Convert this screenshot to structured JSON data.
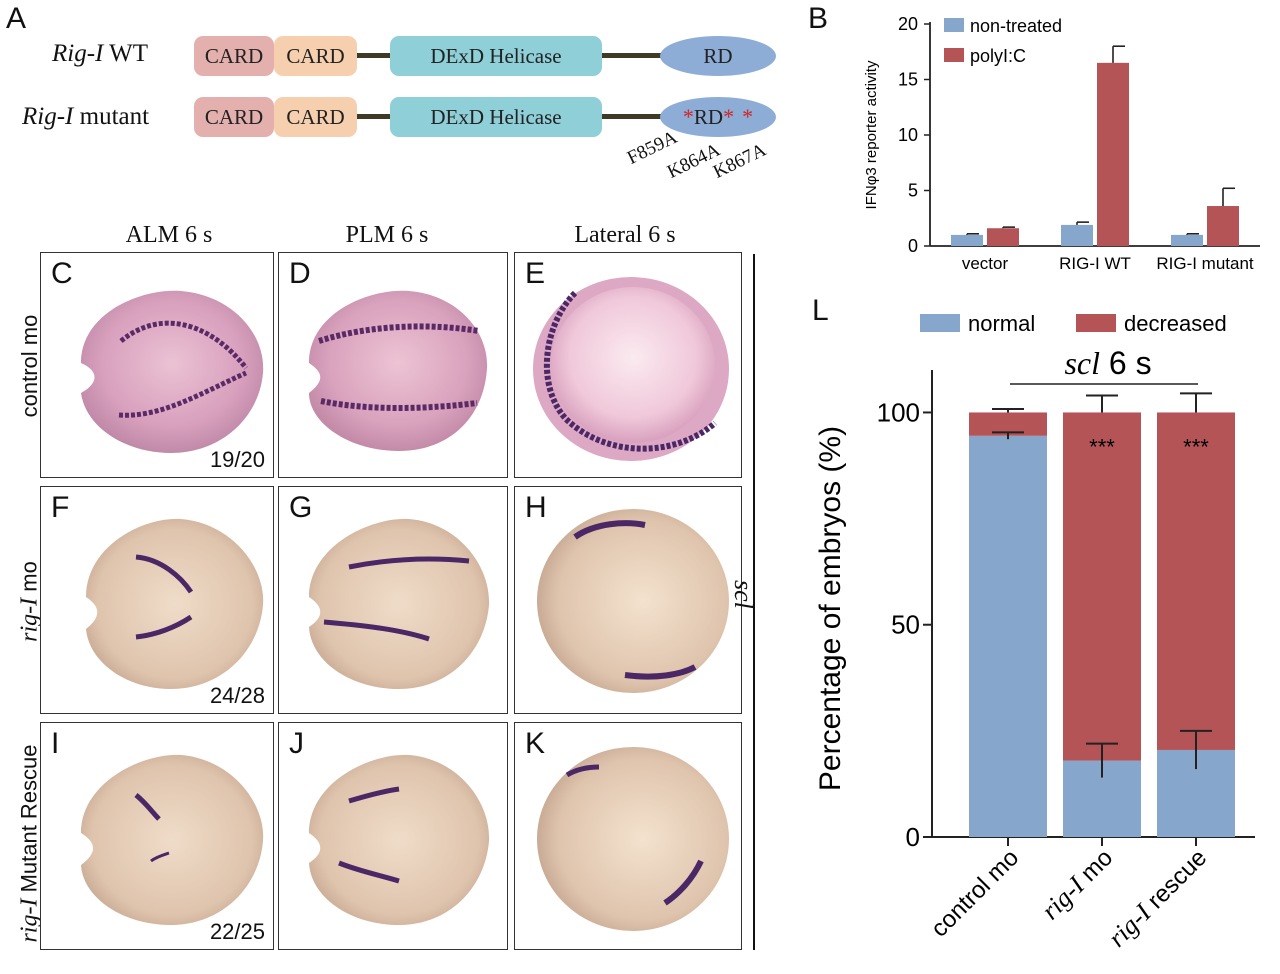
{
  "panelA": {
    "letter": "A",
    "rows": [
      {
        "name_italic": "Rig-I",
        "name_rest": " WT",
        "card1": "CARD",
        "card2": "CARD",
        "helicase": "DExD Helicase",
        "rd": "RD"
      },
      {
        "name_italic": "Rig-I",
        "name_rest": " mutant",
        "card1": "CARD",
        "card2": "CARD",
        "helicase": "DExD Helicase",
        "rd": "RD"
      }
    ],
    "mutations": [
      "F859A",
      "K864A",
      "K867A"
    ],
    "star": "*"
  },
  "panelB": {
    "letter": "B",
    "chart_data": {
      "type": "bar",
      "categories": [
        "vector",
        "RIG-I WT",
        "RIG-I mutant"
      ],
      "series": [
        {
          "name": "non-treated",
          "values": [
            1.0,
            1.9,
            1.0
          ],
          "errors": [
            0.1,
            0.25,
            0.1
          ],
          "color": "#86a6cc"
        },
        {
          "name": "polyI:C",
          "values": [
            1.6,
            16.5,
            3.6
          ],
          "errors": [
            0.1,
            1.5,
            1.6
          ],
          "color": "#b55456"
        }
      ],
      "ylabel": "IFNφ3 reporter activity",
      "ylim": [
        0,
        20
      ],
      "yticks": [
        0,
        5,
        10,
        15,
        20
      ],
      "legend": "top-left"
    }
  },
  "columns": [
    "ALM 6 s",
    "PLM 6 s",
    "Lateral 6 s"
  ],
  "rows": [
    {
      "label_italic": "",
      "label_rest": "control mo",
      "count": "19/20",
      "letters": [
        "C",
        "D",
        "E"
      ]
    },
    {
      "label_italic": "rig-I",
      "label_rest": " mo",
      "count": "24/28",
      "letters": [
        "F",
        "G",
        "H"
      ]
    },
    {
      "label_italic": "rig-I",
      "label_rest": " Mutant Rescue",
      "count": "22/25",
      "letters": [
        "I",
        "J",
        "K"
      ]
    }
  ],
  "gene_label": "scl",
  "panelL": {
    "letter": "L",
    "chart_data": {
      "type": "bar",
      "stacked": true,
      "categories": [
        "control mo",
        "rig-I mo",
        "rig-I rescue"
      ],
      "category_italic": [
        "",
        "rig-I",
        "rig-I"
      ],
      "category_rest": [
        "control mo",
        " mo",
        " rescue"
      ],
      "series": [
        {
          "name": "normal",
          "values": [
            94.5,
            18,
            20.5
          ],
          "errors": [
            0.8,
            4,
            4.5
          ],
          "color": "#86a6cc"
        },
        {
          "name": "decreased",
          "values": [
            5.5,
            82,
            79.5
          ],
          "errors": [
            0.8,
            4,
            4.5
          ],
          "color": "#b55456"
        }
      ],
      "ylabel": "Percentage of embryos (%)",
      "ylim": [
        0,
        110
      ],
      "yticks": [
        0,
        50,
        100
      ],
      "significance": [
        "",
        "***",
        "***"
      ],
      "annotation_italic": "scl",
      "annotation_rest": " 6 s",
      "legend": "top"
    }
  }
}
